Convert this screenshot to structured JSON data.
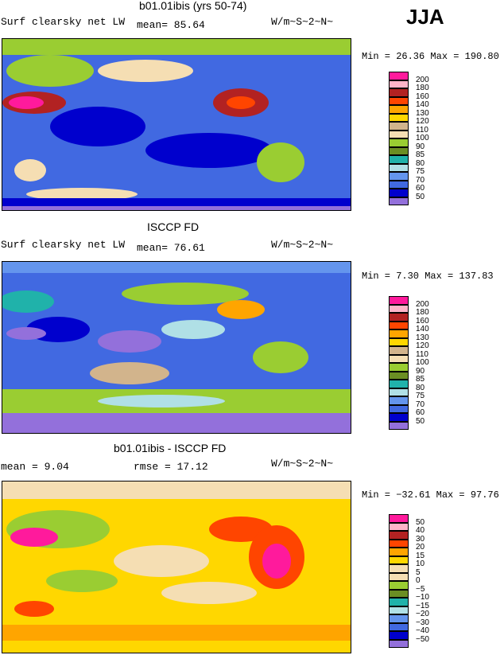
{
  "season": "JJA",
  "units": "W/m~S~2~N~",
  "panels": [
    {
      "title": "b01.01ibis (yrs 50-74)",
      "subtitle": "Surf clearsky net LW",
      "stat1": "mean=  85.64",
      "stat2": "",
      "minmax": "Min =  26.36 Max = 190.80",
      "levels": [
        "200",
        "180",
        "160",
        "140",
        "130",
        "120",
        "110",
        "100",
        "90",
        "85",
        "80",
        "75",
        "70",
        "60",
        "50"
      ],
      "colors": [
        "#ff1a9c",
        "#ffb4c8",
        "#b22222",
        "#ff4500",
        "#ffa500",
        "#ffd700",
        "#d2b48c",
        "#f5deb3",
        "#9acd32",
        "#6b8e23",
        "#20b2aa",
        "#b0e0e6",
        "#6495ed",
        "#4169e1",
        "#0000cd",
        "#9370db"
      ]
    },
    {
      "title": "ISCCP FD",
      "subtitle": "Surf clearsky net LW",
      "stat1": "mean=  76.61",
      "stat2": "",
      "minmax": "Min =   7.30 Max = 137.83",
      "levels": [
        "200",
        "180",
        "160",
        "140",
        "130",
        "120",
        "110",
        "100",
        "90",
        "85",
        "80",
        "75",
        "70",
        "60",
        "50"
      ],
      "colors": [
        "#ff1a9c",
        "#ffb4c8",
        "#b22222",
        "#ff4500",
        "#ffa500",
        "#ffd700",
        "#d2b48c",
        "#f5deb3",
        "#9acd32",
        "#6b8e23",
        "#20b2aa",
        "#b0e0e6",
        "#6495ed",
        "#4169e1",
        "#0000cd",
        "#9370db"
      ]
    },
    {
      "title": "b01.01ibis - ISCCP FD",
      "subtitle": "",
      "stat1": "mean =    9.04",
      "stat2": "rmse =  17.12",
      "minmax": "Min = −32.61 Max =  97.76",
      "levels": [
        "50",
        "40",
        "30",
        "20",
        "15",
        "10",
        "5",
        "0",
        "−5",
        "−10",
        "−15",
        "−20",
        "−30",
        "−40",
        "−50"
      ],
      "colors": [
        "#ff1a9c",
        "#ffb4c8",
        "#b22222",
        "#ff4500",
        "#ffa500",
        "#ffd700",
        "#f5deb3",
        "#f5deb3",
        "#9acd32",
        "#6b8e23",
        "#20b2aa",
        "#b0e0e6",
        "#6495ed",
        "#4169e1",
        "#0000cd",
        "#9370db"
      ]
    }
  ]
}
